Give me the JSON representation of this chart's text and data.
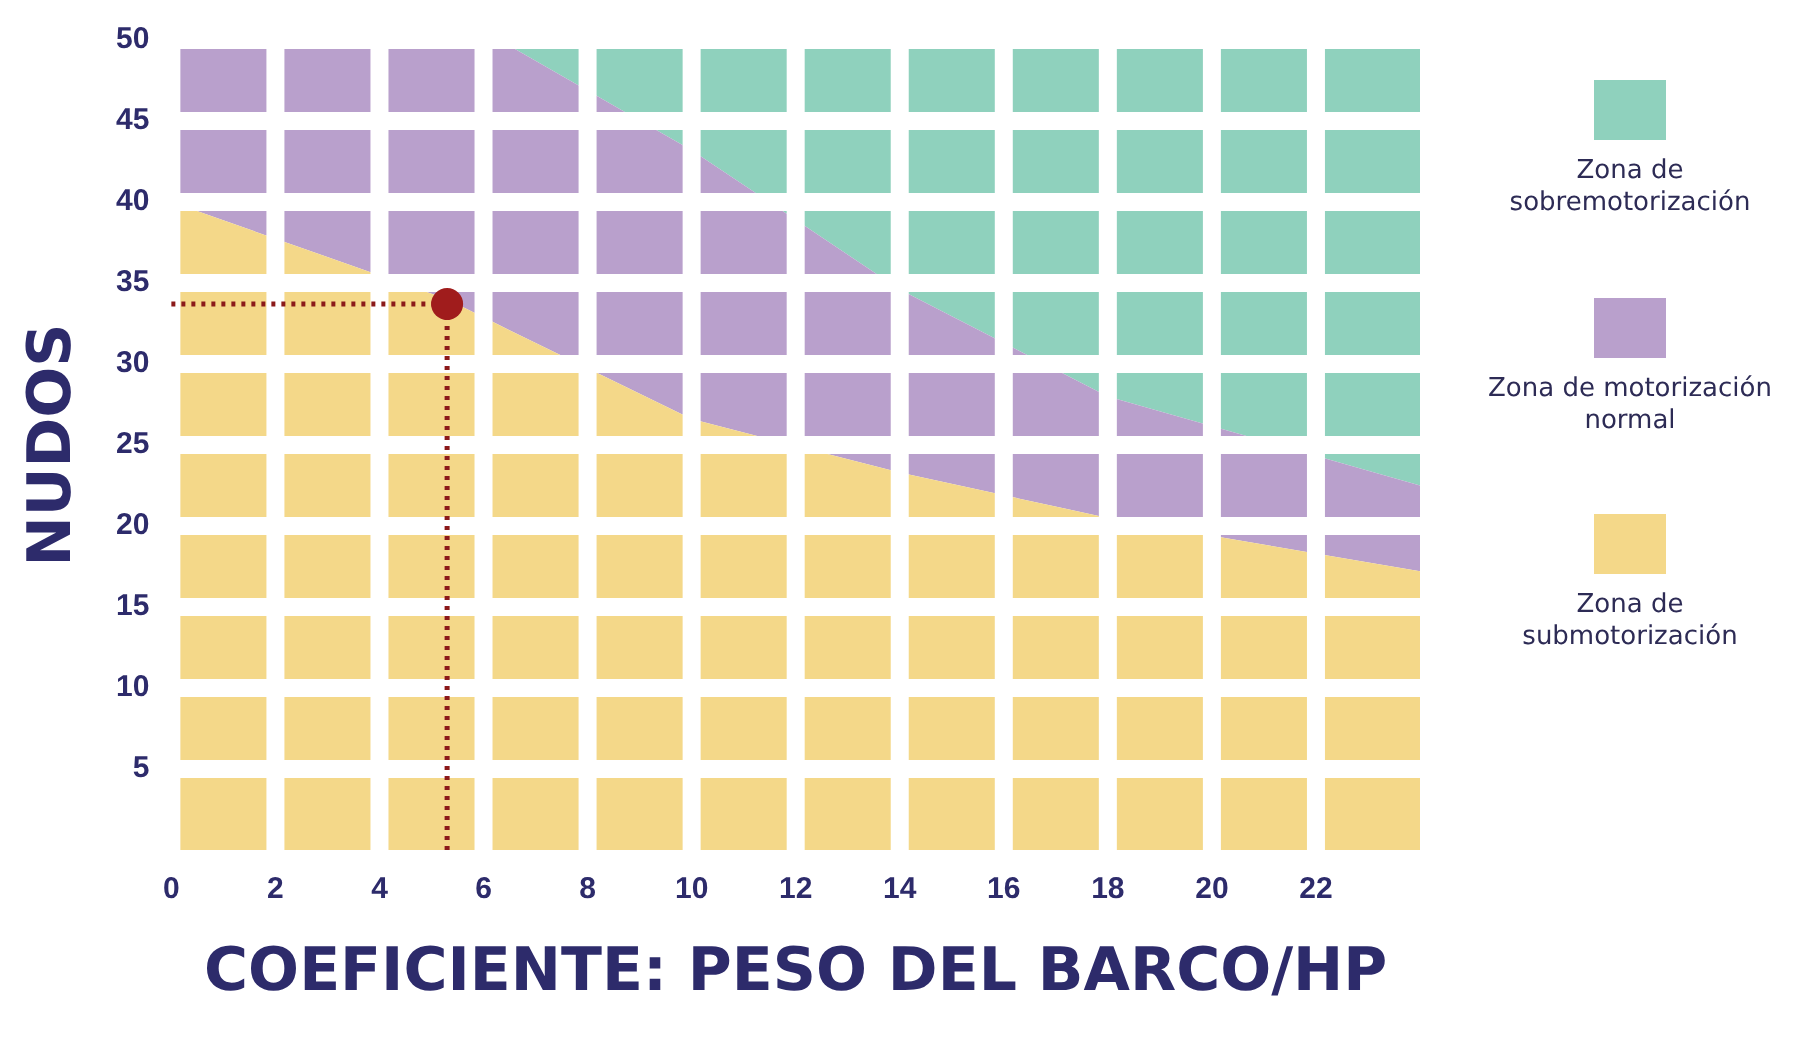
{
  "chart_data": {
    "type": "area",
    "stacked": true,
    "xlabel": "COEFICIENTE: PESO DEL BARCO/HP",
    "ylabel": "NUDOS",
    "x": [
      0,
      5.3,
      6.3,
      10,
      14,
      18,
      24
    ],
    "series": [
      {
        "name": "Zona de submotorización",
        "color": "#f4d889",
        "values": [
          40,
          34,
          32.4,
          26.6,
          23.3,
          20.5,
          17.2
        ]
      },
      {
        "name": "Zona de motorización normal",
        "color": "#b9a0cc",
        "values": [
          10,
          16,
          17.6,
          16.6,
          11.3,
          7.5,
          5.3
        ]
      },
      {
        "name": "Zona de sobremotorización",
        "color": "#8fd1bd",
        "values": [
          0,
          0,
          0,
          6.8,
          15.4,
          22,
          27.5
        ]
      },
      {
        "type": "scatter",
        "color": "#a01c1c",
        "marker": "circle",
        "x": [
          5.3
        ],
        "values": [
          33.7
        ]
      }
    ],
    "ref_lines": [
      {
        "axis": "x",
        "value": 5.3,
        "color": "#8b1a1a",
        "line_style": "dotted"
      },
      {
        "axis": "y",
        "value": 33.7,
        "color": "#8b1a1a",
        "line_style": "dotted"
      }
    ],
    "xlim": [
      0,
      24
    ],
    "xticks": [
      0,
      2,
      4,
      6,
      8,
      10,
      12,
      14,
      16,
      18,
      20,
      22
    ],
    "ylim": [
      0,
      50
    ],
    "yticks": [
      5,
      10,
      15,
      20,
      25,
      30,
      35,
      40,
      45,
      50
    ],
    "grid": true,
    "legend": "right"
  }
}
